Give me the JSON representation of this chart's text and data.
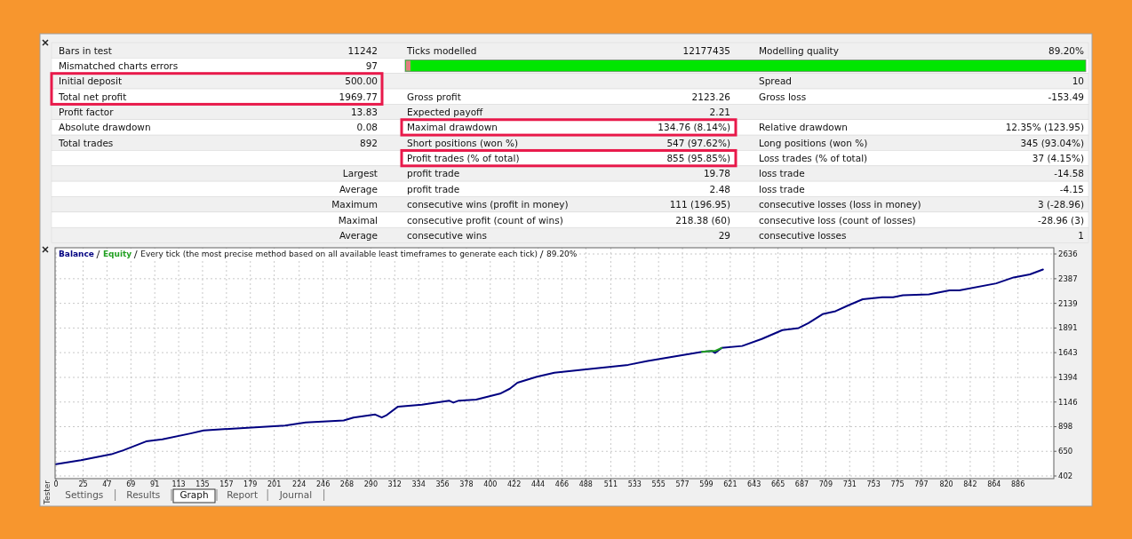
{
  "chart_data": [
    {
      "type": "other",
      "annotations": [
        "Bars in test",
        "11242",
        "Ticks modelled",
        "12177435",
        "Modelling quality",
        "89.20%",
        "Mismatched charts errors",
        "97",
        null,
        null,
        null,
        null,
        "Initial deposit",
        "500.00",
        null,
        null,
        "Spread",
        "10",
        "Total net profit",
        "1969.77",
        "Gross profit",
        "2123.26",
        "Gross loss",
        "-153.49",
        "Profit factor",
        "13.83",
        "Expected payoff",
        "2.21",
        null,
        null,
        "Absolute drawdown",
        "0.08",
        "Maximal drawdown",
        "134.76 (8.14%)",
        "Relative drawdown",
        "12.35% (123.95)",
        "Total trades",
        "892",
        "Short positions (won %)",
        "547 (97.62%)",
        "Long positions (won %)",
        "345 (93.04%)",
        null,
        null,
        "Profit trades (% of total)",
        "855 (95.85%)",
        "Loss trades (% of total)",
        "37 (4.15%)",
        null,
        "Largest",
        "profit trade",
        "19.78",
        "loss trade",
        "-14.58",
        null,
        "Average",
        "profit trade",
        "2.48",
        "loss trade",
        "-4.15",
        null,
        "Maximum",
        "consecutive wins (profit in money)",
        "111 (196.95)",
        "consecutive losses (loss in money)",
        "3 (-28.96)",
        null,
        "Maximal",
        "consecutive profit (count of wins)",
        "218.38 (60)",
        "consecutive loss (count of losses)",
        "-28.96 (3)",
        null,
        "Average",
        "consecutive wins",
        "29",
        "consecutive losses",
        "1"
      ]
    },
    {
      "type": "line",
      "title": "Every tick (the most precise method based on all available least timeframes to generate each tick)",
      "subtitle": "89.20%",
      "x": [
        0,
        23,
        51,
        62,
        83,
        98,
        124,
        136,
        180,
        211,
        230,
        265,
        274,
        294,
        300,
        304,
        315,
        337,
        362,
        366,
        371,
        387,
        409,
        418,
        425,
        443,
        459,
        484,
        527,
        545,
        573,
        595,
        604,
        607,
        613,
        632,
        650,
        669,
        684,
        693,
        706,
        718,
        730,
        743,
        761,
        771,
        780,
        804,
        823,
        832,
        866,
        882,
        897,
        909
      ],
      "series": [
        {
          "name": "Balance",
          "color": "#000080",
          "values": [
            520,
            560,
            620,
            660,
            750,
            770,
            830,
            860,
            890,
            910,
            940,
            960,
            990,
            1020,
            990,
            1010,
            1100,
            1120,
            1160,
            1140,
            1160,
            1170,
            1230,
            1280,
            1340,
            1400,
            1440,
            1470,
            1520,
            1560,
            1610,
            1650,
            1660,
            1640,
            1690,
            1710,
            1780,
            1870,
            1890,
            1940,
            2030,
            2060,
            2120,
            2180,
            2200,
            2200,
            2220,
            2230,
            2270,
            2270,
            2340,
            2400,
            2430,
            2480
          ]
        },
        {
          "name": "Equity",
          "color": "#22a022",
          "values": [
            null,
            null,
            null,
            null,
            null,
            null,
            null,
            null,
            null,
            null,
            null,
            null,
            null,
            null,
            null,
            null,
            null,
            null,
            null,
            null,
            null,
            null,
            null,
            null,
            null,
            null,
            null,
            null,
            null,
            null,
            null,
            1650,
            1660,
            1660,
            1690,
            null,
            null,
            null,
            null,
            null,
            null,
            null,
            null,
            null,
            null,
            null,
            null,
            null,
            null,
            null,
            null,
            null,
            null,
            null
          ]
        }
      ],
      "xlim": [
        0,
        919
      ],
      "xticks": [
        0,
        25,
        47,
        69,
        91,
        113,
        135,
        157,
        179,
        201,
        224,
        246,
        268,
        290,
        312,
        334,
        356,
        378,
        400,
        422,
        444,
        466,
        488,
        511,
        533,
        555,
        577,
        599,
        621,
        643,
        665,
        687,
        709,
        731,
        753,
        775,
        797,
        820,
        842,
        864,
        886
      ],
      "ylim": [
        402,
        2636
      ],
      "yticks": [
        402,
        650,
        898,
        1146,
        1394,
        1643,
        1891,
        2139,
        2387,
        2636
      ],
      "grid": true,
      "legend": "top left",
      "line_style": "solid"
    },
    {
      "type": "other",
      "annotations": [
        "Settings",
        "Results",
        "Graph",
        "Report",
        "Journal",
        "Tester"
      ]
    }
  ]
}
